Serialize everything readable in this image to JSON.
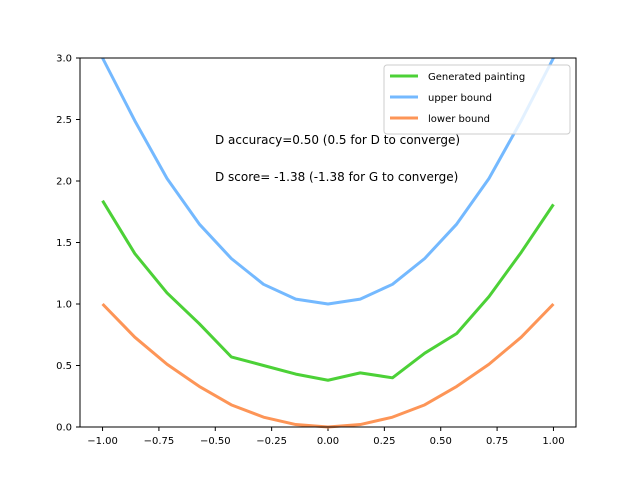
{
  "chart_data": {
    "type": "line",
    "title": "",
    "xlabel": "",
    "ylabel": "",
    "xlim": [
      -1.1,
      1.1
    ],
    "ylim": [
      0,
      3
    ],
    "grid": false,
    "legend_position": "top-right",
    "x": [
      -1.0,
      -0.857,
      -0.714,
      -0.571,
      -0.429,
      -0.286,
      -0.143,
      0.0,
      0.143,
      0.286,
      0.429,
      0.571,
      0.714,
      0.857,
      1.0
    ],
    "series": [
      {
        "name": "Generated painting",
        "color": "#4cd137",
        "values": [
          1.84,
          1.41,
          1.09,
          0.84,
          0.57,
          0.5,
          0.43,
          0.38,
          0.44,
          0.4,
          0.6,
          0.76,
          1.06,
          1.42,
          1.81
        ]
      },
      {
        "name": "upper bound",
        "color": "#74b9ff",
        "values": [
          3.0,
          2.49,
          2.02,
          1.65,
          1.37,
          1.16,
          1.04,
          1.0,
          1.04,
          1.16,
          1.37,
          1.65,
          2.02,
          2.49,
          3.0
        ]
      },
      {
        "name": "lower bound",
        "color": "#fd9557",
        "values": [
          1.0,
          0.73,
          0.51,
          0.33,
          0.18,
          0.08,
          0.02,
          0.0,
          0.02,
          0.08,
          0.18,
          0.33,
          0.51,
          0.73,
          1.0
        ]
      }
    ],
    "x_ticks": [
      -1.0,
      -0.75,
      -0.5,
      -0.25,
      0.0,
      0.25,
      0.5,
      0.75,
      1.0
    ],
    "x_tick_labels": [
      "−1.00",
      "−0.75",
      "−0.50",
      "−0.25",
      "0.00",
      "0.25",
      "0.50",
      "0.75",
      "1.00"
    ],
    "y_ticks": [
      0.0,
      0.5,
      1.0,
      1.5,
      2.0,
      2.5,
      3.0
    ],
    "y_tick_labels": [
      "0.0",
      "0.5",
      "1.0",
      "1.5",
      "2.0",
      "2.5",
      "3.0"
    ],
    "annotations": [
      "D accuracy=0.50 (0.5 for D to converge)",
      "D score= -1.38 (-1.38 for G to converge)"
    ]
  }
}
